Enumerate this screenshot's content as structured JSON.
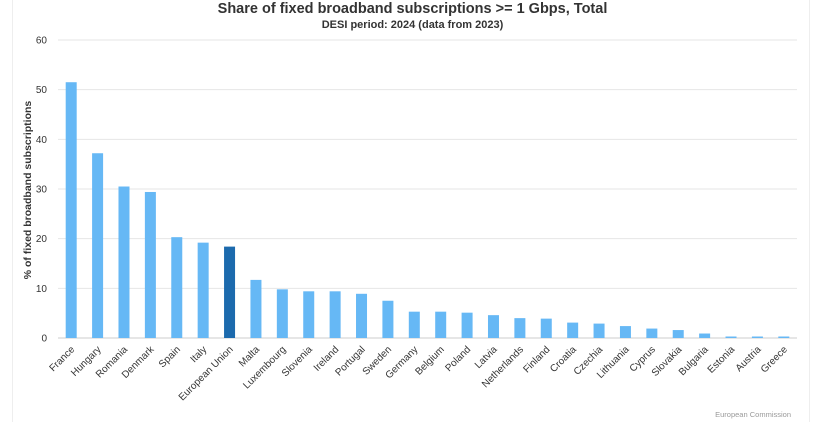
{
  "chart_data": {
    "type": "bar",
    "title": "Share of fixed broadband subscriptions >= 1 Gbps, Total",
    "subtitle": "DESI period: 2024 (data from 2023)",
    "xlabel": "",
    "ylabel": "% of fixed broadband subscriptions",
    "ylim": [
      0,
      60
    ],
    "yticks": [
      "0",
      "10",
      "20",
      "30",
      "40",
      "50",
      "60"
    ],
    "grid": true,
    "categories": [
      "France",
      "Hungary",
      "Romania",
      "Denmark",
      "Spain",
      "Italy",
      "European Union",
      "Malta",
      "Luxembourg",
      "Slovenia",
      "Ireland",
      "Portugal",
      "Sweden",
      "Germany",
      "Belgium",
      "Poland",
      "Latvia",
      "Netherlands",
      "Finland",
      "Croatia",
      "Czechia",
      "Lithuania",
      "Cyprus",
      "Slovakia",
      "Bulgaria",
      "Estonia",
      "Austria",
      "Greece"
    ],
    "values": [
      51.5,
      37.2,
      30.5,
      29.4,
      20.3,
      19.2,
      18.4,
      11.7,
      9.8,
      9.4,
      9.4,
      8.9,
      7.5,
      5.3,
      5.3,
      5.1,
      4.6,
      4.0,
      3.9,
      3.1,
      2.9,
      2.4,
      1.9,
      1.6,
      0.9,
      0.3,
      0.3,
      0.3
    ],
    "highlight": "European Union",
    "colors": {
      "bar": "#66b8f5",
      "highlight": "#1c6aad",
      "grid": "#e6e6e6",
      "axis": "#cccccc"
    }
  },
  "credit": "European Commission"
}
